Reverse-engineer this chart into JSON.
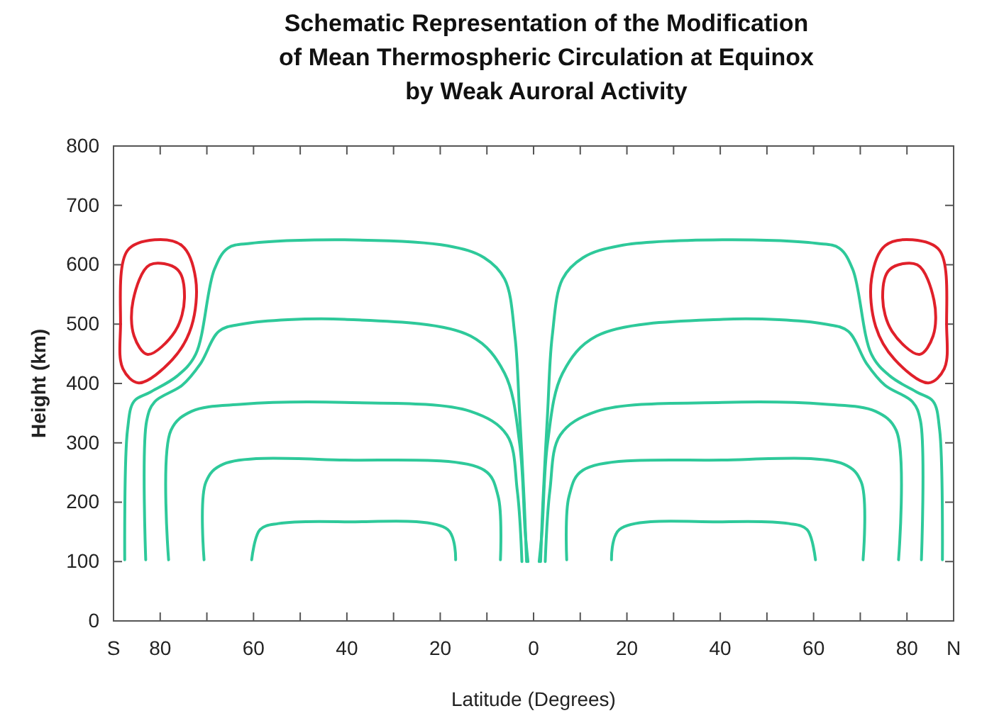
{
  "chart_data": {
    "type": "line",
    "title": "Schematic Representation of the Modification of Mean Thermospheric Circulation at Equinox by Weak Auroral Activity",
    "xlabel": "Latitude (Degrees)",
    "ylabel": "Height (km)",
    "xlim": [
      -90,
      90
    ],
    "ylim": [
      0,
      800
    ],
    "xticks": [
      {
        "value": -90,
        "label": "S"
      },
      {
        "value": -80,
        "label": "80"
      },
      {
        "value": -70,
        "label": null
      },
      {
        "value": -60,
        "label": "60"
      },
      {
        "value": -50,
        "label": null
      },
      {
        "value": -40,
        "label": "40"
      },
      {
        "value": -30,
        "label": null
      },
      {
        "value": -20,
        "label": "20"
      },
      {
        "value": -10,
        "label": null
      },
      0,
      {
        "value": 10,
        "label": null
      },
      20,
      {
        "value": 30,
        "label": null
      },
      40,
      {
        "value": 50,
        "label": null
      },
      60,
      {
        "value": 70,
        "label": null
      },
      80,
      {
        "value": 90,
        "label": "N"
      }
    ],
    "yticks": [
      0,
      100,
      200,
      300,
      400,
      500,
      600,
      700,
      800
    ],
    "grid": false,
    "line_style": "solid",
    "series": [
      {
        "color": "#2ec99a",
        "x": [
          -87.6,
          -87,
          -85.6,
          -82.2,
          -76.3,
          -72.4,
          -68.4,
          -65.5,
          -60.6,
          -40.5,
          -18.4,
          -10.6,
          -6.2,
          -4,
          -3,
          -2,
          -1.5
        ],
        "values": [
          103,
          322,
          370,
          385,
          413,
          449,
          592,
          628,
          636,
          642,
          632,
          612,
          576,
          480,
          350,
          200,
          100
        ]
      },
      {
        "color": "#2ec99a",
        "x": [
          -83.1,
          -82.9,
          -81.2,
          -75.3,
          -71.4,
          -67.4,
          -62.5,
          -40.5,
          -13.5,
          -6.2,
          -3,
          -1.8,
          -1.2
        ],
        "values": [
          103,
          337,
          369,
          397,
          433,
          488,
          500,
          508,
          480,
          417,
          300,
          150,
          100
        ]
      },
      {
        "color": "#2ec99a",
        "x": [
          -78.2,
          -77.7,
          -73.3,
          -62.5,
          -40.5,
          -13.5,
          -5.7,
          -3.5,
          -2.5
        ],
        "values": [
          103,
          321,
          353,
          365,
          368,
          353,
          313,
          220,
          100
        ]
      },
      {
        "color": "#2ec99a",
        "x": [
          -70.6,
          -70.2,
          -66.5,
          -40.5,
          -10.6,
          -7.6,
          -7.1
        ],
        "values": [
          103,
          234,
          264,
          271,
          254,
          210,
          103
        ]
      },
      {
        "color": "#2ec99a",
        "x": [
          -60.4,
          -58.6,
          -54.7,
          -40.5,
          -18.4,
          -16.7
        ],
        "values": [
          103,
          154,
          164,
          167,
          154,
          103
        ]
      },
      {
        "color": "#2ec99a",
        "x": [
          87.6,
          87,
          85.6,
          82.2,
          76.3,
          72.4,
          68.4,
          65.5,
          60.6,
          40.5,
          18.4,
          10.6,
          6.2,
          4,
          3,
          2,
          1.5
        ],
        "values": [
          103,
          322,
          370,
          385,
          413,
          449,
          592,
          628,
          636,
          642,
          632,
          612,
          576,
          480,
          350,
          200,
          100
        ]
      },
      {
        "color": "#2ec99a",
        "x": [
          83.1,
          82.9,
          81.2,
          75.3,
          71.4,
          67.4,
          62.5,
          40.5,
          13.5,
          6.2,
          3,
          1.8,
          1.2
        ],
        "values": [
          103,
          337,
          369,
          397,
          433,
          488,
          500,
          508,
          480,
          417,
          300,
          150,
          100
        ]
      },
      {
        "color": "#2ec99a",
        "x": [
          78.2,
          77.7,
          73.3,
          62.5,
          40.5,
          13.5,
          5.7,
          3.5,
          2.5
        ],
        "values": [
          103,
          321,
          353,
          365,
          368,
          353,
          313,
          220,
          100
        ]
      },
      {
        "color": "#2ec99a",
        "x": [
          70.6,
          70.2,
          66.5,
          40.5,
          10.6,
          7.6,
          7.1
        ],
        "values": [
          103,
          234,
          264,
          271,
          254,
          210,
          103
        ]
      },
      {
        "color": "#2ec99a",
        "x": [
          60.4,
          58.6,
          54.7,
          40.5,
          18.4,
          16.7
        ],
        "values": [
          103,
          154,
          164,
          167,
          154,
          103
        ]
      }
    ]
  }
}
